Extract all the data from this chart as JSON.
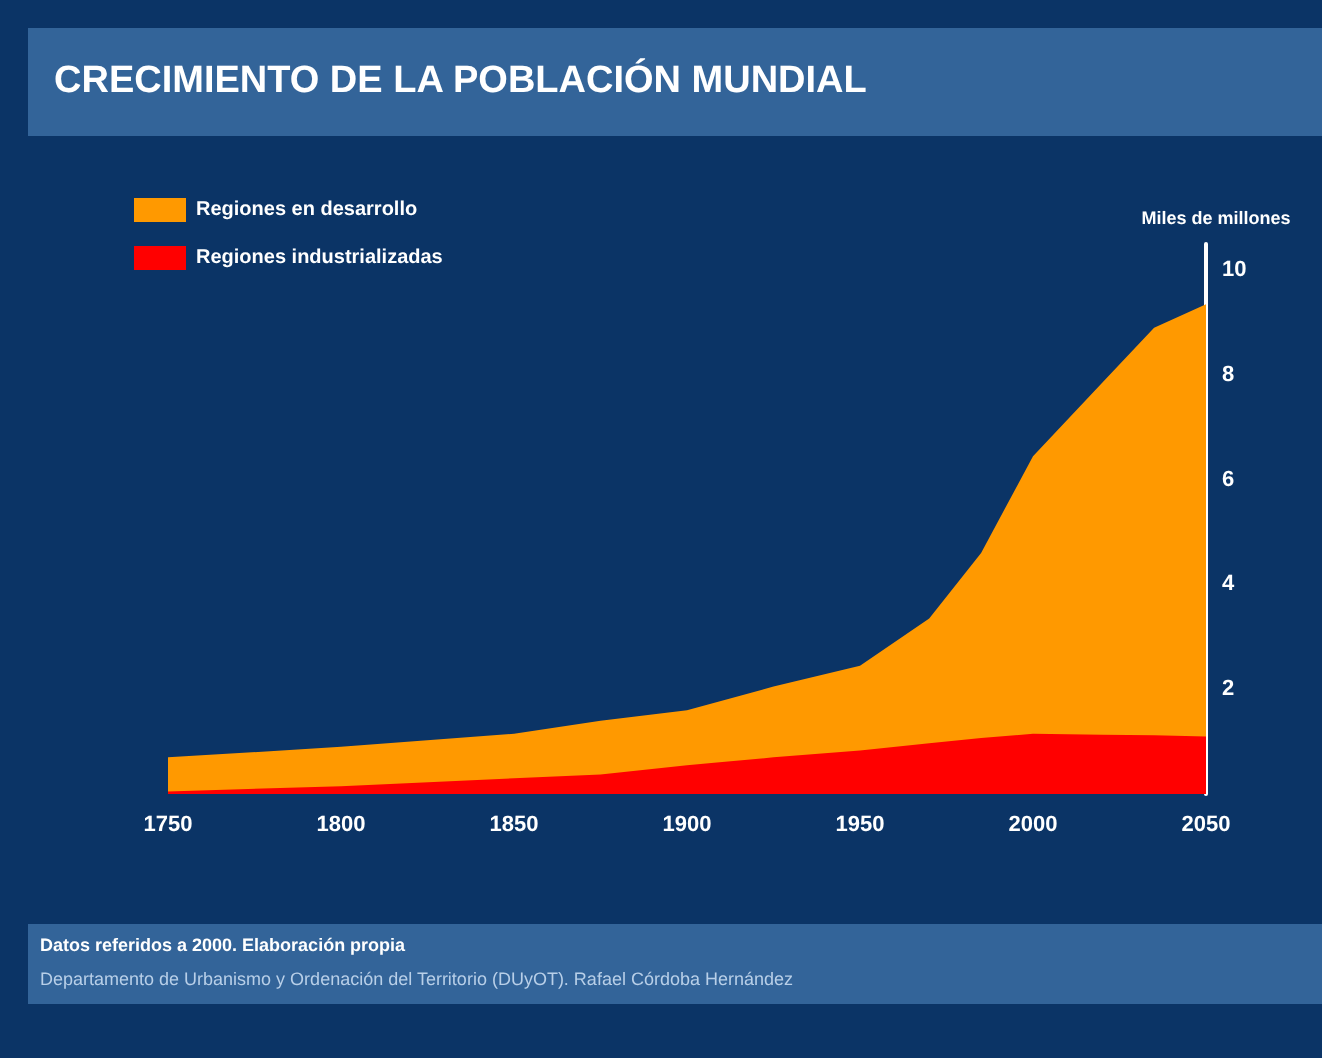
{
  "chart_data": {
    "type": "area",
    "title": "CRECIMIENTO DE LA POBLACIÓN MUNDIAL",
    "ylabel": "Miles de millones",
    "x": [
      1750,
      1800,
      1850,
      1875,
      1900,
      1925,
      1950,
      1970,
      1985,
      2000,
      2020,
      2035,
      2050
    ],
    "stacked": true,
    "series": [
      {
        "name": "Regiones industrializadas",
        "color": "#ff0000",
        "values": [
          0.05,
          0.15,
          0.3,
          0.37,
          0.55,
          0.7,
          0.83,
          0.97,
          1.07,
          1.15,
          1.13,
          1.12,
          1.1
        ]
      },
      {
        "name": "Regiones en desarrollo",
        "color": "#ff9900",
        "values": [
          0.65,
          0.75,
          0.85,
          1.03,
          1.05,
          1.35,
          1.62,
          2.38,
          3.53,
          5.3,
          6.72,
          7.78,
          8.25
        ]
      }
    ],
    "xlim": [
      1750,
      2050
    ],
    "xticks": [
      1750,
      1800,
      1850,
      1900,
      1950,
      2000,
      2050
    ],
    "ylim": [
      0,
      10.5
    ],
    "yticks": [
      2,
      4,
      6,
      8,
      10
    ],
    "legend": "top left",
    "grid": false,
    "annotations": [
      "Datos referidos a 2000. Elaboración propia",
      "Departamento de Urbanismo y Ordenación del Territorio (DUyOT). Rafael Córdoba Hernández"
    ]
  }
}
